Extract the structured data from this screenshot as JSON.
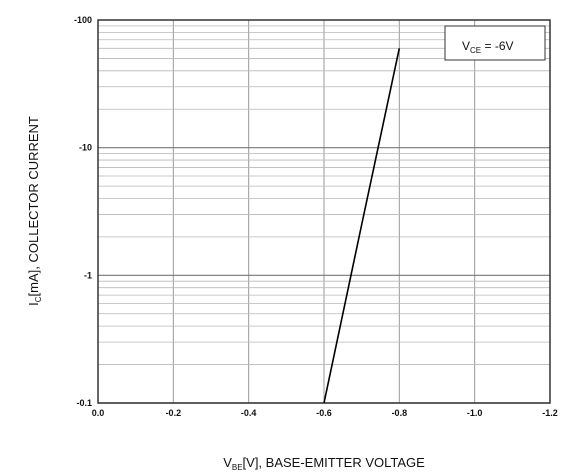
{
  "chart_data": {
    "type": "line",
    "x_scale": "linear",
    "y_scale": "log",
    "xlim": [
      0.0,
      -1.2
    ],
    "ylim": [
      -0.1,
      -100
    ],
    "x_ticks": [
      "0.0",
      "-0.2",
      "-0.4",
      "-0.6",
      "-0.8",
      "-1.0",
      "-1.2"
    ],
    "y_ticks": [
      "-0.1",
      "-1",
      "-10",
      "-100"
    ],
    "x_tick_values": [
      0.0,
      -0.2,
      -0.4,
      -0.6,
      -0.8,
      -1.0,
      -1.2
    ],
    "y_tick_values": [
      -0.1,
      -1,
      -10,
      -100
    ],
    "xlabel": {
      "main": "V",
      "sub": "BE",
      "rest": "[V], BASE-EMITTER VOLTAGE"
    },
    "ylabel": {
      "main": "I",
      "sub": "C",
      "rest": "[mA], COLLECTOR CURRENT"
    },
    "legend": {
      "main": "V",
      "sub": "CE",
      "rest": " = -6V",
      "placement": "top-right"
    },
    "grid": true,
    "series": [
      {
        "x": [
          -0.6,
          -0.7,
          -0.8
        ],
        "y": [
          -0.1,
          -2.5,
          -60
        ],
        "color": "#000000"
      }
    ]
  }
}
